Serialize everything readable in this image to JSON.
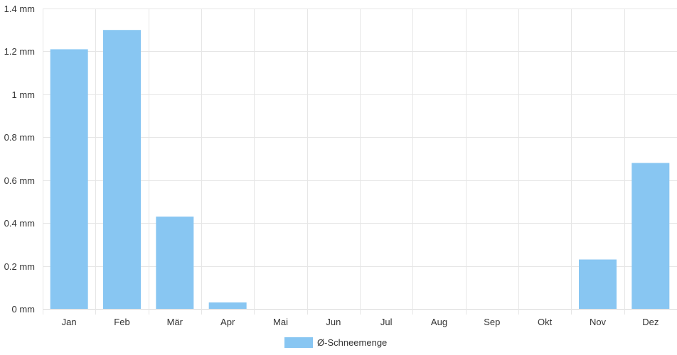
{
  "chart_data": {
    "type": "bar",
    "categories": [
      "Jan",
      "Feb",
      "Mär",
      "Apr",
      "Mai",
      "Jun",
      "Jul",
      "Aug",
      "Sep",
      "Okt",
      "Nov",
      "Dez"
    ],
    "series": [
      {
        "name": "Ø-Schneemenge",
        "values": [
          1.21,
          1.3,
          0.43,
          0.03,
          0,
          0,
          0,
          0,
          0,
          0,
          0.23,
          0.68
        ],
        "color": "#88c6f2"
      }
    ],
    "y_unit": "mm",
    "ylim": [
      0,
      1.4
    ],
    "yticks": [
      {
        "value": 0,
        "label": "0 mm"
      },
      {
        "value": 0.2,
        "label": "0.2 mm"
      },
      {
        "value": 0.4,
        "label": "0.4 mm"
      },
      {
        "value": 0.6,
        "label": "0.6 mm"
      },
      {
        "value": 0.8,
        "label": "0.8 mm"
      },
      {
        "value": 1,
        "label": "1 mm"
      },
      {
        "value": 1.2,
        "label": "1.2 mm"
      },
      {
        "value": 1.4,
        "label": "1.4 mm"
      }
    ],
    "grid": true,
    "legend_position": "bottom-center",
    "colors": {
      "bar": "#88c6f2",
      "grid": "#e6e6e6",
      "axis": "#d9d9d9",
      "text": "#333333"
    }
  }
}
